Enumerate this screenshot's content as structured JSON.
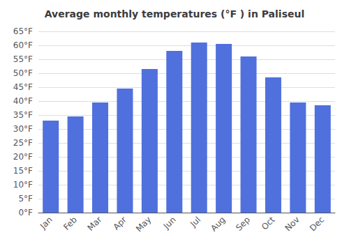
{
  "chart_data": {
    "type": "bar",
    "title": "Average monthly temperatures (°F ) in Paliseul",
    "categories": [
      "Jan",
      "Feb",
      "Mar",
      "Apr",
      "May",
      "Jun",
      "Jul",
      "Aug",
      "Sep",
      "Oct",
      "Nov",
      "Dec"
    ],
    "values": [
      33,
      34.5,
      39.5,
      44.5,
      51.5,
      58,
      61,
      60.5,
      56,
      48.5,
      39.5,
      38.5
    ],
    "ylim": [
      0,
      65
    ],
    "yticks": [
      {
        "value": 0,
        "label": "0°F"
      },
      {
        "value": 5,
        "label": "5°F"
      },
      {
        "value": 10,
        "label": "10°F"
      },
      {
        "value": 15,
        "label": "15°F"
      },
      {
        "value": 20,
        "label": "20°F"
      },
      {
        "value": 25,
        "label": "25°F"
      },
      {
        "value": 30,
        "label": "30°F"
      },
      {
        "value": 35,
        "label": "35°F"
      },
      {
        "value": 40,
        "label": "40°F"
      },
      {
        "value": 45,
        "label": "45°F"
      },
      {
        "value": 50,
        "label": "50°F"
      },
      {
        "value": 55,
        "label": "55°F"
      },
      {
        "value": 60,
        "label": "60°F"
      },
      {
        "value": 65,
        "label": "65°F"
      }
    ],
    "grid": true
  }
}
